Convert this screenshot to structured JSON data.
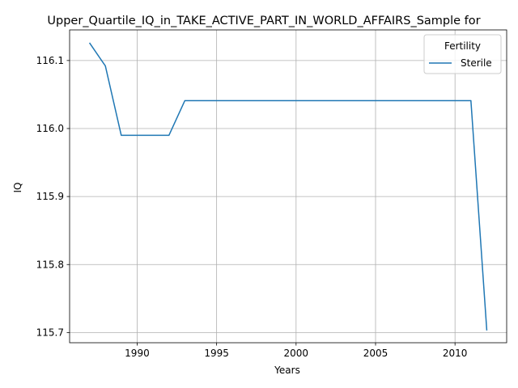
{
  "chart_data": {
    "type": "line",
    "title": "Upper_Quartile_IQ_in_TAKE_ACTIVE_PART_IN_WORLD_AFFAIRS_Sample for",
    "xlabel": "Years",
    "ylabel": "IQ",
    "xlim": [
      1985.75,
      2013.25
    ],
    "ylim": [
      115.685,
      116.145
    ],
    "xticks": [
      1990,
      1995,
      2000,
      2005,
      2010
    ],
    "yticks": [
      115.7,
      115.8,
      115.9,
      116.0,
      116.1
    ],
    "xtick_labels": [
      "1990",
      "1995",
      "2000",
      "2005",
      "2010"
    ],
    "ytick_labels": [
      "115.7",
      "115.8",
      "115.9",
      "116.0",
      "116.1"
    ],
    "grid": true,
    "legend": {
      "title": "Fertility",
      "placement": "upper-right"
    },
    "series": [
      {
        "name": "Sterile",
        "color": "#1f77b4",
        "x": [
          1987,
          1988,
          1989,
          1990,
          1991,
          1992,
          1993,
          1994,
          1995,
          1996,
          1997,
          1998,
          1999,
          2000,
          2001,
          2002,
          2003,
          2004,
          2005,
          2006,
          2007,
          2008,
          2009,
          2010,
          2011,
          2012
        ],
        "y": [
          116.126,
          116.092,
          115.99,
          115.99,
          115.99,
          115.99,
          116.041,
          116.041,
          116.041,
          116.041,
          116.041,
          116.041,
          116.041,
          116.041,
          116.041,
          116.041,
          116.041,
          116.041,
          116.041,
          116.041,
          116.041,
          116.041,
          116.041,
          116.041,
          116.041,
          115.703
        ]
      }
    ]
  }
}
